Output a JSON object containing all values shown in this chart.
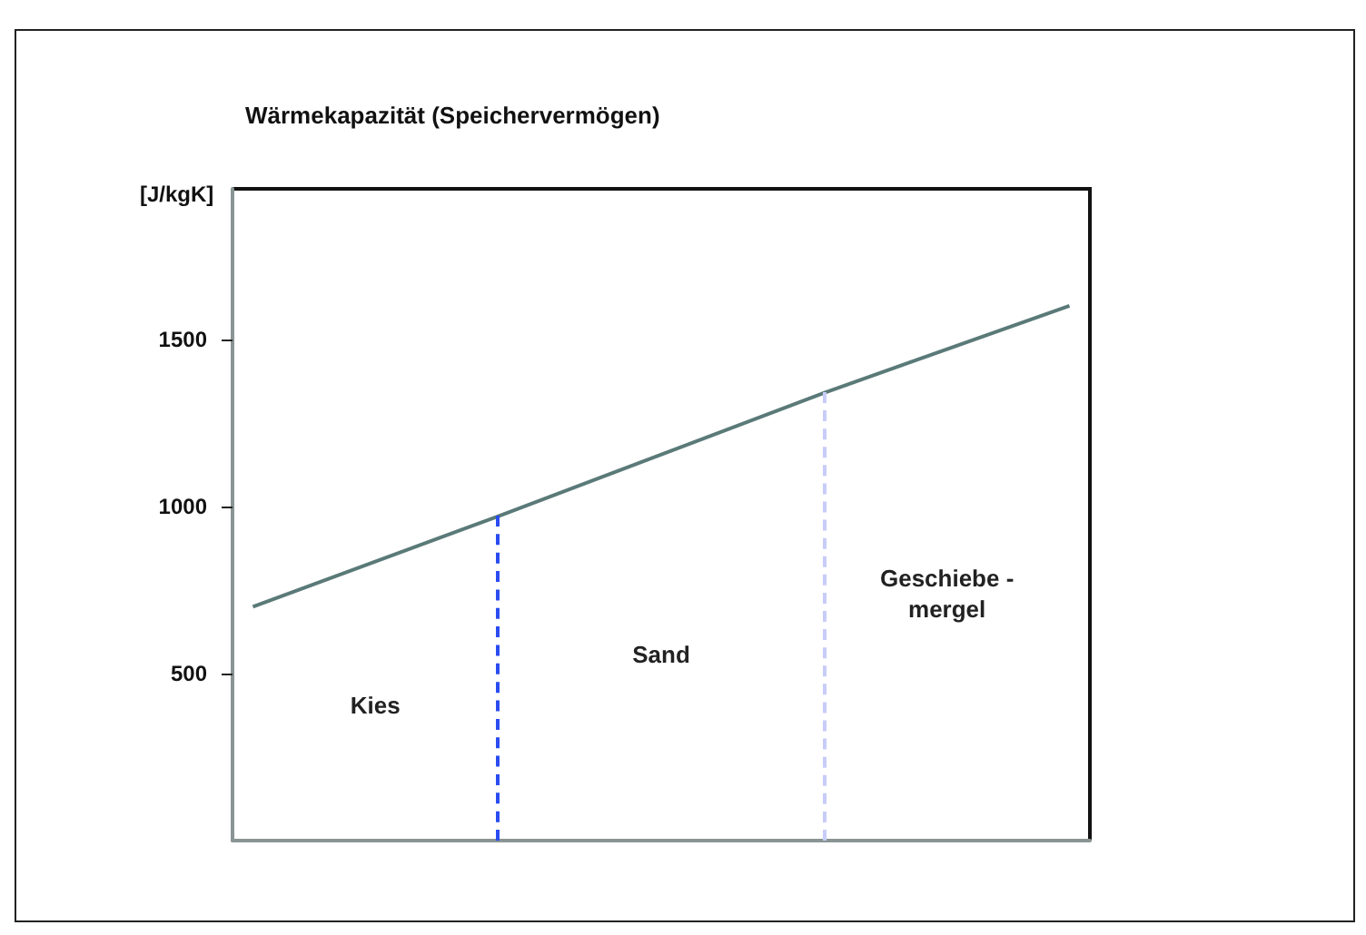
{
  "chart_data": {
    "type": "line",
    "title": "Wärmekapazität (Speichervermögen)",
    "ylabel": "[J/kgK]",
    "categories": [
      null,
      null,
      null,
      null,
      null,
      null,
      null,
      null,
      null,
      null,
      null,
      null,
      null,
      null,
      null,
      null,
      null,
      null,
      null,
      null,
      null
    ],
    "series": [
      {
        "color": "#5a7a78",
        "values": [
          700,
          null,
          null,
          null,
          null,
          null,
          970,
          null,
          null,
          null,
          null,
          null,
          null,
          null,
          1340,
          null,
          null,
          null,
          null,
          null,
          1600
        ]
      }
    ],
    "ylim": [
      0,
      1950
    ],
    "yticks": [
      500,
      1000,
      1500
    ],
    "tick_labels": "y",
    "grid": false,
    "marker": "none",
    "line_style": "solid",
    "annotations": [
      "Kies",
      "Sand",
      "Geschiebe -\nmergel"
    ]
  }
}
